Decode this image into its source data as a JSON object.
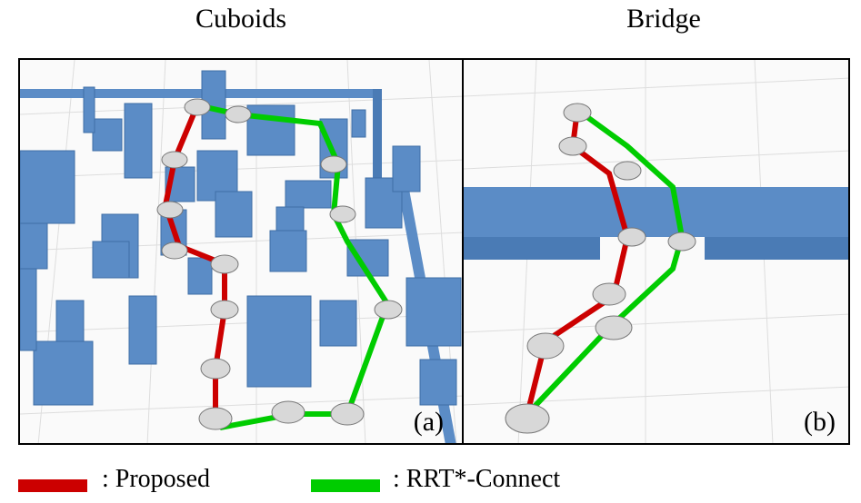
{
  "panels": [
    {
      "title": "Cuboids",
      "label": "(a)"
    },
    {
      "title": "Bridge",
      "label": "(b)"
    }
  ],
  "legend": [
    {
      "text": ": Proposed",
      "color": "#cc0000"
    },
    {
      "text": ": RRT*-Connect",
      "color": "#00cc00"
    }
  ],
  "colors": {
    "obstacle": "#5b8cc6",
    "obstacle_side": "#3f6ea6",
    "floor_grid": "#dcdcdc",
    "robot": "#d8d8d8"
  }
}
